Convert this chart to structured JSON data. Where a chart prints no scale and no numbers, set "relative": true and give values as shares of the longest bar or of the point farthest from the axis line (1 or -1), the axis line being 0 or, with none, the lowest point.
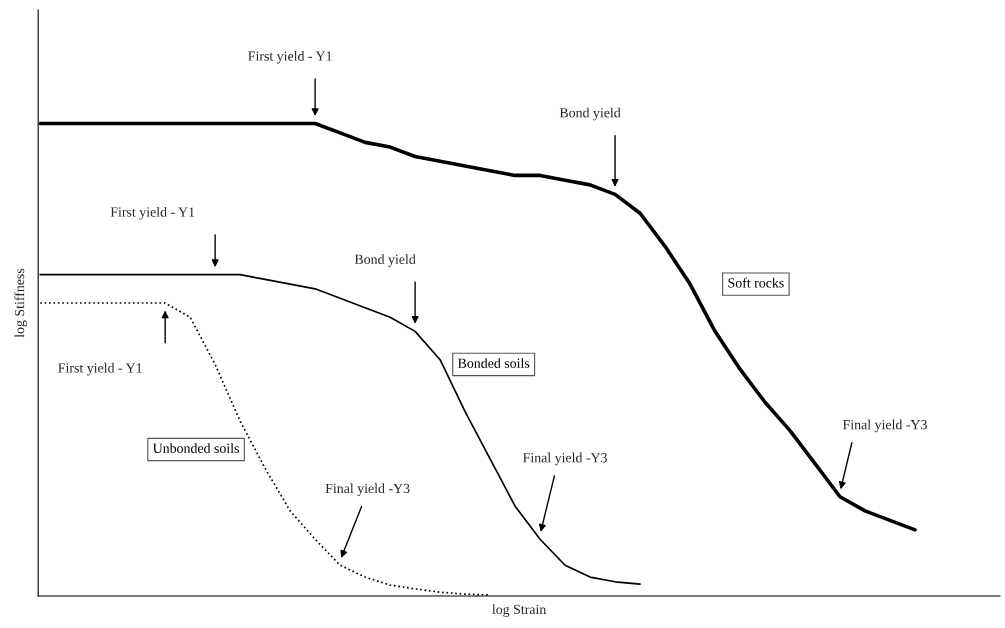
{
  "chart_data": {
    "type": "line",
    "relative": true,
    "xlabel": "log Strain",
    "ylabel": "log Stiffness",
    "categories": [
      null,
      null,
      null,
      null,
      null,
      null,
      null,
      null,
      null,
      null,
      null,
      null,
      null,
      null,
      null,
      null,
      null,
      null,
      null,
      null,
      null,
      null,
      null,
      null,
      null,
      null,
      null,
      null,
      null,
      null,
      null,
      null,
      null,
      null,
      null,
      null
    ],
    "series": [
      {
        "name": "Soft rocks",
        "color": "#000000",
        "line_style": "solid",
        "values": [
          1.0,
          1.0,
          1.0,
          1.0,
          1.0,
          1.0,
          1.0,
          1.0,
          1.0,
          1.0,
          1.0,
          1.0,
          0.98,
          0.96,
          0.95,
          0.93,
          0.92,
          0.91,
          0.9,
          0.89,
          0.89,
          0.88,
          0.87,
          0.85,
          0.81,
          0.74,
          0.66,
          0.56,
          0.48,
          0.41,
          0.35,
          0.28,
          0.21,
          0.18,
          0.16,
          0.14
        ]
      },
      {
        "name": "Bonded soils",
        "color": "#000000",
        "line_style": "solid",
        "values": [
          0.68,
          0.68,
          0.68,
          0.68,
          0.68,
          0.68,
          0.68,
          0.68,
          0.68,
          0.67,
          0.66,
          0.65,
          0.63,
          0.61,
          0.59,
          0.56,
          0.5,
          0.39,
          0.29,
          0.19,
          0.12,
          0.065,
          0.04,
          0.03,
          0.025,
          null,
          null,
          null,
          null,
          null,
          null,
          null,
          null,
          null,
          null,
          null
        ]
      },
      {
        "name": "Unbonded soils",
        "color": "#000000",
        "line_style": "dotted",
        "values": [
          0.62,
          0.62,
          0.62,
          0.62,
          0.62,
          0.62,
          0.59,
          0.49,
          0.37,
          0.27,
          0.18,
          0.12,
          0.065,
          0.04,
          0.023,
          0.015,
          0.008,
          0.004,
          0.002,
          null,
          null,
          null,
          null,
          null,
          null,
          null,
          null,
          null,
          null,
          null,
          null,
          null,
          null,
          null,
          null,
          null
        ]
      }
    ],
    "annotations": [
      "First yield - Y1",
      "Bond yield",
      "First yield - Y1",
      "Bond yield",
      "First yield - Y1",
      "Final yield -Y3",
      "Final yield -Y3",
      "Final yield -Y3"
    ],
    "legend": false
  }
}
